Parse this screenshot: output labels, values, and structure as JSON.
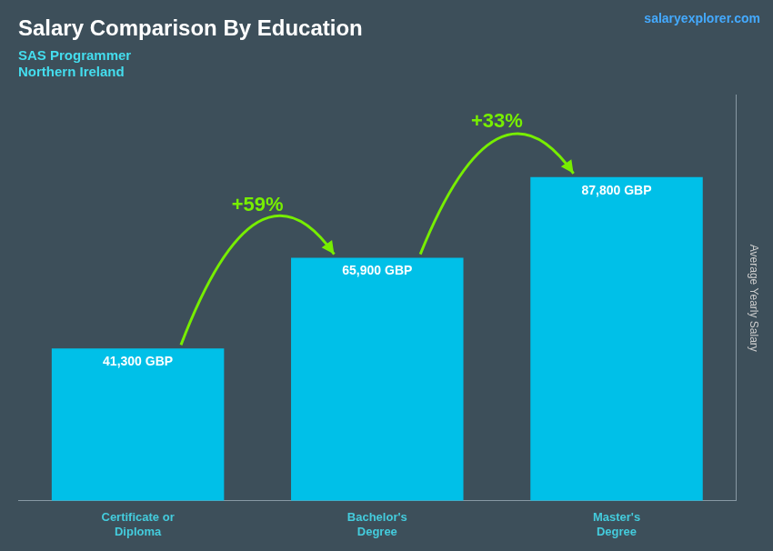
{
  "chart_data": {
    "type": "bar",
    "title": "Salary Comparison By Education",
    "subtitle": [
      "SAS Programmer",
      "Northern Ireland"
    ],
    "ylabel": "Average Yearly Salary",
    "categories": [
      "Certificate or\nDiploma",
      "Bachelor's\nDegree",
      "Master's\nDegree"
    ],
    "values": [
      41300,
      65900,
      87800
    ],
    "value_labels": [
      "41,300 GBP",
      "65,900 GBP",
      "87,800 GBP"
    ],
    "data_labels": true,
    "color": "#00C0E8",
    "ylim": [
      0,
      110000
    ],
    "tick_labels": "x",
    "grid": false,
    "annotations": [
      {
        "text": "+59%",
        "from": "Certificate or\nDiploma",
        "to": "Bachelor's\nDegree",
        "color": "#77EE00"
      },
      {
        "text": "+33%",
        "from": "Bachelor's\nDegree",
        "to": "Master's\nDegree",
        "color": "#77EE00"
      },
      {
        "text": "salaryexplorer.com"
      }
    ]
  }
}
